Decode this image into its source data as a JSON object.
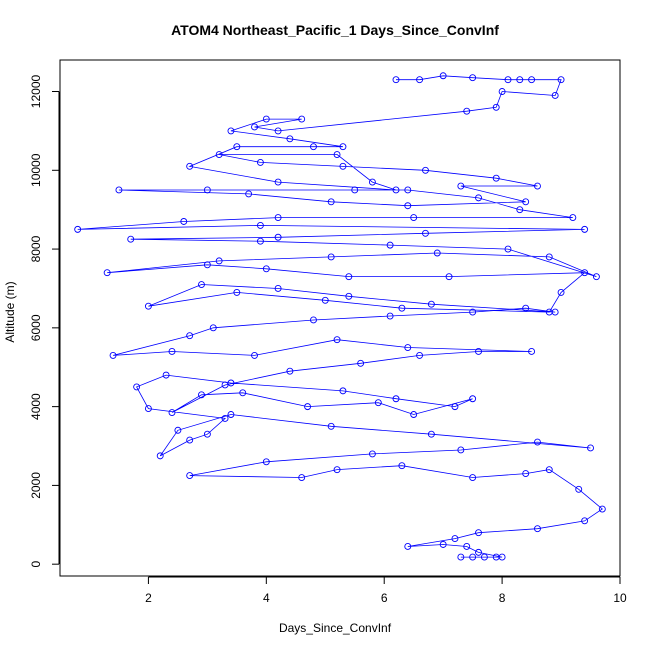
{
  "chart_data": {
    "type": "line",
    "title": "ATOM4 Northeast_Pacific_1 Days_Since_ConvInf",
    "xlabel": "Days_Since_ConvInf",
    "ylabel": "Altitude (m)",
    "xlim": [
      0.5,
      10.0
    ],
    "ylim": [
      -300,
      12800
    ],
    "xticks": [
      2,
      4,
      6,
      8,
      10
    ],
    "yticks": [
      0,
      2000,
      4000,
      6000,
      8000,
      10000,
      12000
    ],
    "marker": "open-circle",
    "color": "#0000ff",
    "series": [
      {
        "points": [
          [
            7.3,
            180
          ],
          [
            7.5,
            180
          ],
          [
            7.7,
            180
          ],
          [
            7.9,
            180
          ],
          [
            8.0,
            180
          ],
          [
            7.6,
            300
          ],
          [
            7.4,
            450
          ],
          [
            7.0,
            500
          ],
          [
            6.4,
            450
          ],
          [
            7.2,
            650
          ],
          [
            7.6,
            800
          ],
          [
            8.6,
            900
          ],
          [
            9.4,
            1100
          ],
          [
            9.7,
            1400
          ],
          [
            9.3,
            1900
          ],
          [
            8.8,
            2400
          ],
          [
            8.4,
            2300
          ],
          [
            7.5,
            2200
          ],
          [
            6.3,
            2500
          ],
          [
            5.2,
            2400
          ],
          [
            4.6,
            2200
          ],
          [
            2.7,
            2250
          ],
          [
            4.0,
            2600
          ],
          [
            5.8,
            2800
          ],
          [
            7.3,
            2900
          ],
          [
            8.6,
            3100
          ],
          [
            9.5,
            2950
          ],
          [
            6.8,
            3300
          ],
          [
            5.1,
            3500
          ],
          [
            3.4,
            3800
          ],
          [
            2.5,
            3400
          ],
          [
            2.2,
            2750
          ],
          [
            2.7,
            3150
          ],
          [
            3.0,
            3300
          ],
          [
            3.3,
            3700
          ],
          [
            2.0,
            3950
          ],
          [
            1.8,
            4500
          ],
          [
            2.3,
            4800
          ],
          [
            3.4,
            4600
          ],
          [
            5.3,
            4400
          ],
          [
            6.2,
            4200
          ],
          [
            7.2,
            4000
          ],
          [
            7.5,
            4200
          ],
          [
            6.5,
            3800
          ],
          [
            5.9,
            4100
          ],
          [
            4.7,
            4000
          ],
          [
            3.6,
            4350
          ],
          [
            2.9,
            4300
          ],
          [
            2.4,
            3850
          ],
          [
            3.3,
            4550
          ],
          [
            4.4,
            4900
          ],
          [
            5.6,
            5100
          ],
          [
            6.6,
            5300
          ],
          [
            7.6,
            5400
          ],
          [
            8.5,
            5400
          ],
          [
            6.4,
            5500
          ],
          [
            5.2,
            5700
          ],
          [
            3.8,
            5300
          ],
          [
            2.4,
            5400
          ],
          [
            1.4,
            5300
          ],
          [
            2.7,
            5800
          ],
          [
            3.1,
            6000
          ],
          [
            4.8,
            6200
          ],
          [
            6.1,
            6300
          ],
          [
            7.5,
            6400
          ],
          [
            8.4,
            6500
          ],
          [
            8.9,
            6400
          ],
          [
            6.8,
            6600
          ],
          [
            5.4,
            6800
          ],
          [
            4.2,
            7000
          ],
          [
            2.9,
            7100
          ],
          [
            2.0,
            6550
          ],
          [
            3.5,
            6900
          ],
          [
            5.0,
            6700
          ],
          [
            6.3,
            6500
          ],
          [
            8.8,
            6400
          ],
          [
            9.0,
            6900
          ],
          [
            9.4,
            7400
          ],
          [
            7.1,
            7300
          ],
          [
            5.4,
            7300
          ],
          [
            4.0,
            7500
          ],
          [
            3.0,
            7600
          ],
          [
            1.3,
            7400
          ],
          [
            3.2,
            7700
          ],
          [
            5.1,
            7800
          ],
          [
            6.9,
            7900
          ],
          [
            8.8,
            7800
          ],
          [
            9.6,
            7300
          ],
          [
            8.1,
            8000
          ],
          [
            6.1,
            8100
          ],
          [
            3.9,
            8200
          ],
          [
            1.7,
            8250
          ],
          [
            4.2,
            8300
          ],
          [
            6.7,
            8400
          ],
          [
            9.4,
            8500
          ],
          [
            3.9,
            8600
          ],
          [
            0.8,
            8500
          ],
          [
            2.6,
            8700
          ],
          [
            4.2,
            8800
          ],
          [
            6.5,
            8800
          ],
          [
            9.2,
            8800
          ],
          [
            8.3,
            9000
          ],
          [
            7.6,
            9300
          ],
          [
            6.4,
            9500
          ],
          [
            5.5,
            9500
          ],
          [
            3.0,
            9500
          ],
          [
            1.5,
            9500
          ],
          [
            3.7,
            9400
          ],
          [
            5.1,
            9200
          ],
          [
            6.4,
            9100
          ],
          [
            8.4,
            9200
          ],
          [
            7.3,
            9600
          ],
          [
            8.6,
            9600
          ],
          [
            7.9,
            9800
          ],
          [
            6.7,
            10000
          ],
          [
            5.3,
            10100
          ],
          [
            3.9,
            10200
          ],
          [
            3.2,
            10400
          ],
          [
            5.2,
            10400
          ],
          [
            5.8,
            9700
          ],
          [
            6.2,
            9500
          ],
          [
            4.2,
            9700
          ],
          [
            2.7,
            10100
          ],
          [
            3.5,
            10600
          ],
          [
            4.8,
            10600
          ],
          [
            5.3,
            10600
          ],
          [
            4.4,
            10800
          ],
          [
            3.4,
            11000
          ],
          [
            4.0,
            11300
          ],
          [
            4.6,
            11300
          ],
          [
            3.8,
            11100
          ],
          [
            4.2,
            11000
          ],
          [
            7.4,
            11500
          ],
          [
            7.9,
            11600
          ],
          [
            8.0,
            12000
          ],
          [
            8.9,
            11900
          ],
          [
            9.0,
            12300
          ],
          [
            8.5,
            12300
          ],
          [
            8.3,
            12300
          ],
          [
            8.1,
            12300
          ],
          [
            7.5,
            12350
          ],
          [
            7.0,
            12400
          ],
          [
            6.6,
            12300
          ],
          [
            6.2,
            12300
          ]
        ]
      }
    ]
  }
}
